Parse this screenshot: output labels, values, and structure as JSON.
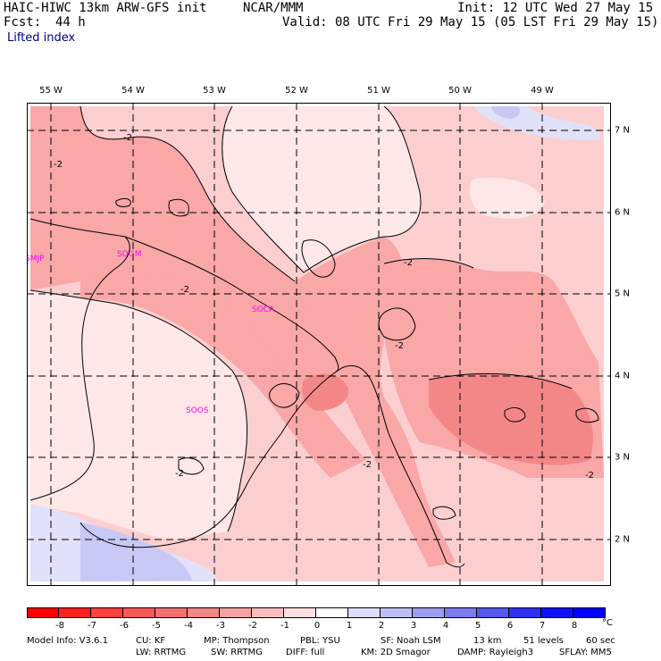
{
  "header": {
    "model_title": "HAIC-HIWC 13km ARW-GFS init",
    "institution": "NCAR/MMM",
    "init": "Init: 12 UTC Wed 27 May 15",
    "fcst_label": "Fcst:",
    "fcst_value": "44 h",
    "valid": "Valid: 08 UTC Fri 29 May 15 (05 LST Fri 29 May 15)",
    "field": "Lifted index"
  },
  "map": {
    "lon_labels": [
      "55 W",
      "54 W",
      "53 W",
      "52 W",
      "51 W",
      "50 W",
      "49 W"
    ],
    "lat_labels": [
      "7 N",
      "6 N",
      "5 N",
      "4 N",
      "3 N",
      "2 N"
    ],
    "stations": [
      "SMJP",
      "SOGM",
      "SOCA",
      "SOOS"
    ],
    "contour_label": "-2",
    "colors": {
      "ocean_pink": "#f9a7a7",
      "light_pink": "#fbcfcf",
      "pale": "#fde7e7",
      "deep": "#f38787",
      "blue": "#c8c8f5",
      "blue_light": "#e1e1fa",
      "station": "#ff00ff"
    }
  },
  "colorbar": {
    "ticks": [
      "-8",
      "-7",
      "-6",
      "-5",
      "-4",
      "-3",
      "-2",
      "-1",
      "0",
      "1",
      "2",
      "3",
      "4",
      "5",
      "6",
      "7",
      "8"
    ],
    "unit": "°C",
    "colors": [
      "#ff0000",
      "#ff2020",
      "#ff4040",
      "#f85858",
      "#f57070",
      "#f38888",
      "#f6a2a2",
      "#f9bdbd",
      "#fcdede",
      "#ffffff",
      "#dcdcfb",
      "#bebef5",
      "#9e9ef0",
      "#7c7cf0",
      "#5656f0",
      "#3030f5",
      "#1010fa",
      "#0000ff"
    ]
  },
  "footer": {
    "model_info": "Model Info: V3.6.1",
    "cu": "CU: KF",
    "mp": "MP: Thompson",
    "pbl": "PBL: YSU",
    "sf": "SF: Noah LSM",
    "res": "13 km",
    "levels": "51 levels",
    "dt": "60 sec",
    "lw": "LW: RRTMG",
    "sw": "SW: RRTMG",
    "diff": "DIFF: full",
    "km": "KM: 2D Smagor",
    "damp": "DAMP: Rayleigh3",
    "sflay": "SFLAY: MM5"
  }
}
